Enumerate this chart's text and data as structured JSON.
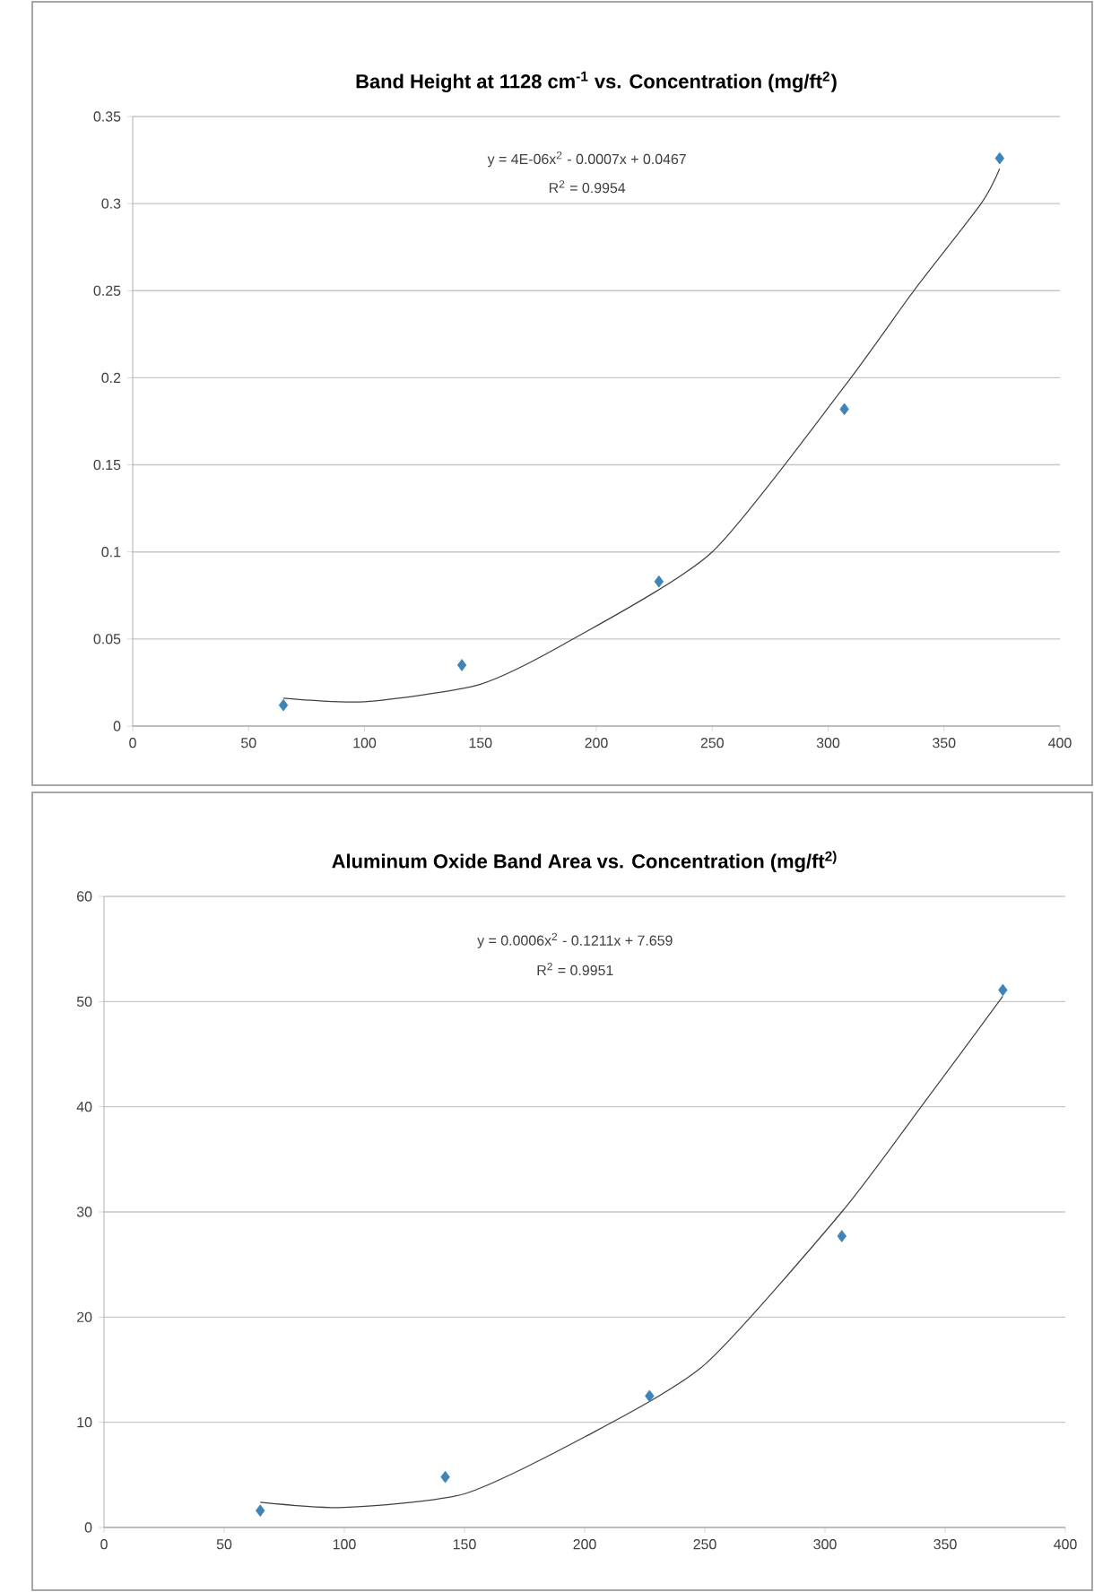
{
  "chart_data": [
    {
      "type": "scatter",
      "title": "Band Height at 1128 cm$^{-1}$ vs. Concentration (mg/ft$^{2}$)",
      "annotations": [
        "y = 4E-06x$^{2}$ - 0.0007x + 0.0467",
        "R$^{2}$ = 0.9954"
      ],
      "series": [
        {
          "color": "#3f84b8",
          "marker": "diamond",
          "x": [
            65,
            142,
            227,
            307,
            374
          ],
          "values": [
            0.012,
            0.035,
            0.083,
            0.182,
            0.326
          ]
        },
        {
          "type": "line",
          "color": "#404040",
          "marker": "none",
          "x": [
            65,
            100,
            150,
            190,
            250,
            307,
            337,
            366,
            374
          ],
          "values": [
            0.016,
            0.014,
            0.024,
            0.05,
            0.1,
            0.195,
            0.25,
            0.3,
            0.32
          ]
        }
      ],
      "xlim": [
        0,
        400
      ],
      "xticks": [
        0,
        50,
        100,
        150,
        200,
        250,
        300,
        350,
        400
      ],
      "ylim": [
        0,
        0.35
      ],
      "yticks": [
        0,
        0.05,
        0.1,
        0.15,
        0.2,
        0.25,
        0.3,
        0.35
      ],
      "grid": "y"
    },
    {
      "type": "scatter",
      "title": "Aluminum Oxide Band Area vs. Concentration (mg/ft$^{2)}$",
      "annotations": [
        "y = 0.0006x$^{2}$ - 0.1211x + 7.659",
        "R$^{2}$ = 0.9951"
      ],
      "series": [
        {
          "color": "#3f84b8",
          "marker": "diamond",
          "x": [
            65,
            142,
            227,
            307,
            374
          ],
          "values": [
            1.6,
            4.8,
            12.5,
            27.7,
            51.1
          ]
        },
        {
          "type": "line",
          "color": "#404040",
          "marker": "none",
          "x": [
            65,
            100,
            150,
            200,
            250,
            307,
            340,
            374
          ],
          "values": [
            2.4,
            1.9,
            3.2,
            8.6,
            15.5,
            30,
            40,
            50.5
          ]
        }
      ],
      "xlim": [
        0,
        400
      ],
      "xticks": [
        0,
        50,
        100,
        150,
        200,
        250,
        300,
        350,
        400
      ],
      "ylim": [
        0,
        60
      ],
      "yticks": [
        0,
        10,
        20,
        30,
        40,
        50,
        60
      ],
      "grid": "y"
    }
  ]
}
